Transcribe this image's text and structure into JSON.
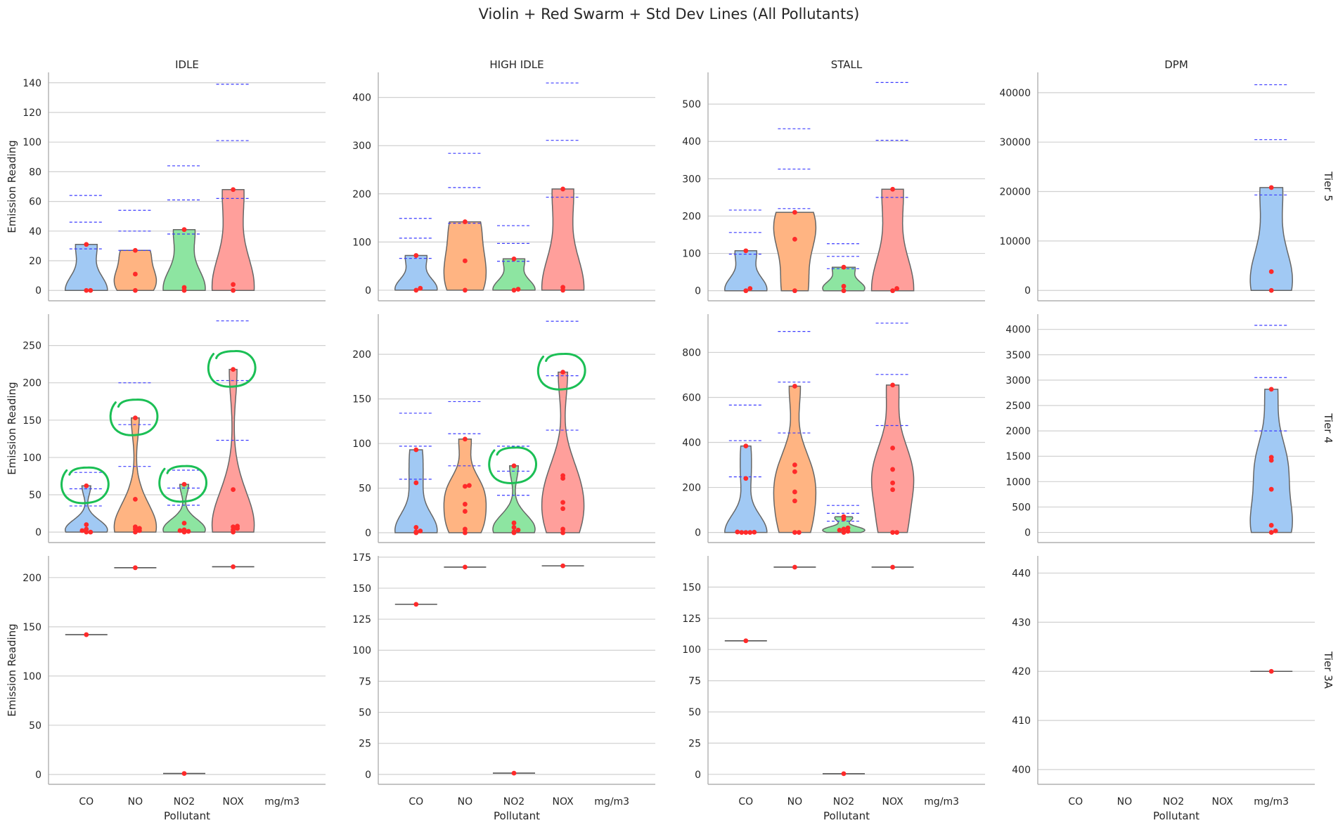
{
  "chart_data": {
    "type": "violin",
    "title": "Violin + Red Swarm + Std Dev Lines (All Pollutants)",
    "xlabel": "Pollutant",
    "ylabel": "Emission Reading",
    "categories": [
      "CO",
      "NO",
      "NO2",
      "NOX",
      "mg/m3"
    ],
    "columns": [
      "IDLE",
      "HIGH IDLE",
      "STALL",
      "DPM"
    ],
    "rows": [
      "Tier 5",
      "Tier 4",
      "Tier 3A"
    ],
    "colors": {
      "CO": "#a1c9f4",
      "NO": "#ffb482",
      "NO2": "#8de5a1",
      "NOX": "#ff9f9b",
      "mg/m3": "#a1c9f4",
      "points": "#ff2a2a",
      "std_lines": "#3b3bff",
      "annotation": "#1bbf55",
      "grid": "#d0d0d0"
    },
    "grid": true,
    "panels": [
      {
        "row": "Tier 5",
        "col": "IDLE",
        "ylim": [
          -7,
          147
        ],
        "yticks": [
          0,
          20,
          40,
          60,
          80,
          100,
          120,
          140
        ],
        "groups": [
          {
            "cat": "CO",
            "points": [
              0,
              0,
              31
            ],
            "std": [
              28,
              46,
              64
            ]
          },
          {
            "cat": "NO",
            "points": [
              0,
              11,
              27
            ],
            "std": [
              27,
              40,
              54
            ]
          },
          {
            "cat": "NO2",
            "points": [
              0,
              2,
              41
            ],
            "std": [
              38,
              61,
              84
            ]
          },
          {
            "cat": "NOX",
            "points": [
              0,
              4,
              68
            ],
            "std": [
              62,
              101,
              139
            ]
          }
        ]
      },
      {
        "row": "Tier 5",
        "col": "HIGH IDLE",
        "ylim": [
          -22,
          452
        ],
        "yticks": [
          0,
          100,
          200,
          300,
          400
        ],
        "groups": [
          {
            "cat": "CO",
            "points": [
              0,
              4,
              72
            ],
            "std": [
              66,
              108,
              149
            ]
          },
          {
            "cat": "NO",
            "points": [
              0,
              61,
              142
            ],
            "std": [
              139,
              213,
              284
            ]
          },
          {
            "cat": "NO2",
            "points": [
              0,
              2,
              65
            ],
            "std": [
              60,
              97,
              134
            ]
          },
          {
            "cat": "NOX",
            "points": [
              0,
              6,
              210
            ],
            "std": [
              193,
              311,
              430
            ]
          }
        ]
      },
      {
        "row": "Tier 5",
        "col": "STALL",
        "ylim": [
          -27,
          585
        ],
        "yticks": [
          0,
          100,
          200,
          300,
          400,
          500
        ],
        "groups": [
          {
            "cat": "CO",
            "points": [
              0,
              6,
              107
            ],
            "std": [
              98,
              156,
              216
            ]
          },
          {
            "cat": "NO",
            "points": [
              0,
              138,
              210
            ],
            "std": [
              220,
              326,
              434
            ]
          },
          {
            "cat": "NO2",
            "points": [
              0,
              12,
              63
            ],
            "std": [
              59,
              92,
              126
            ]
          },
          {
            "cat": "NOX",
            "points": [
              0,
              6,
              272
            ],
            "std": [
              250,
              403,
              558
            ]
          }
        ]
      },
      {
        "row": "Tier 5",
        "col": "DPM",
        "ylim": [
          -2100,
          44100
        ],
        "yticks": [
          0,
          10000,
          20000,
          30000,
          40000
        ],
        "groups": [
          {
            "cat": "mg/m3",
            "points": [
              0,
              3800,
              20800
            ],
            "std": [
              19300,
              30500,
              41600
            ]
          }
        ]
      },
      {
        "row": "Tier 4",
        "col": "IDLE",
        "ylim": [
          -14,
          292
        ],
        "yticks": [
          0,
          50,
          100,
          150,
          200,
          250
        ],
        "groups": [
          {
            "cat": "CO",
            "points": [
              0,
              0,
              2,
              4,
              10,
              62
            ],
            "std": [
              35,
              58,
              80
            ]
          },
          {
            "cat": "NO",
            "points": [
              0,
              2,
              4,
              5,
              7,
              44,
              153
            ],
            "std": [
              88,
              144,
              200
            ]
          },
          {
            "cat": "NO2",
            "points": [
              0,
              1,
              2,
              3,
              12,
              64
            ],
            "std": [
              36,
              59,
              83
            ]
          },
          {
            "cat": "NOX",
            "points": [
              0,
              3,
              5,
              7,
              8,
              57,
              218
            ],
            "std": [
              123,
              203,
              283
            ]
          }
        ]
      },
      {
        "row": "Tier 4",
        "col": "HIGH IDLE",
        "ylim": [
          -11,
          245
        ],
        "yticks": [
          0,
          50,
          100,
          150,
          200
        ],
        "groups": [
          {
            "cat": "CO",
            "points": [
              0,
              1,
              2,
              6,
              56,
              93
            ],
            "std": [
              60,
              97,
              134
            ]
          },
          {
            "cat": "NO",
            "points": [
              0,
              4,
              24,
              32,
              52,
              53,
              105
            ],
            "std": [
              75,
              111,
              147
            ]
          },
          {
            "cat": "NO2",
            "points": [
              0,
              1,
              3,
              6,
              11,
              75
            ],
            "std": [
              42,
              69,
              97
            ]
          },
          {
            "cat": "NOX",
            "points": [
              0,
              4,
              27,
              34,
              61,
              64,
              180
            ],
            "std": [
              115,
              176,
              237
            ]
          }
        ]
      },
      {
        "row": "Tier 4",
        "col": "STALL",
        "ylim": [
          -45,
          970
        ],
        "yticks": [
          0,
          200,
          400,
          600,
          800
        ],
        "groups": [
          {
            "cat": "CO",
            "points": [
              0,
              0,
              0,
              1,
              2,
              240,
              384
            ],
            "std": [
              247,
              408,
              566
            ]
          },
          {
            "cat": "NO",
            "points": [
              0,
              0,
              140,
              180,
              270,
              300,
              650
            ],
            "std": [
              442,
              668,
              893
            ]
          },
          {
            "cat": "NO2",
            "points": [
              0,
              5,
              10,
              15,
              20,
              60,
              70
            ],
            "std": [
              50,
              85,
              120
            ]
          },
          {
            "cat": "NOX",
            "points": [
              0,
              0,
              190,
              220,
              280,
              375,
              655
            ],
            "std": [
              475,
              702,
              930
            ]
          }
        ]
      },
      {
        "row": "Tier 4",
        "col": "DPM",
        "ylim": [
          -200,
          4300
        ],
        "yticks": [
          0,
          500,
          1000,
          1500,
          2000,
          2500,
          3000,
          3500,
          4000
        ],
        "groups": [
          {
            "cat": "mg/m3",
            "points": [
              0,
              30,
              140,
              850,
              1420,
              1480,
              2820
            ],
            "std": [
              2000,
              3050,
              4080
            ]
          }
        ]
      },
      {
        "row": "Tier 3A",
        "col": "IDLE",
        "ylim": [
          -10,
          222
        ],
        "yticks": [
          0,
          50,
          100,
          150,
          200
        ],
        "groups": [
          {
            "cat": "CO",
            "points": [
              142
            ],
            "std": []
          },
          {
            "cat": "NO",
            "points": [
              210
            ],
            "std": []
          },
          {
            "cat": "NO2",
            "points": [
              1
            ],
            "std": []
          },
          {
            "cat": "NOX",
            "points": [
              211
            ],
            "std": []
          }
        ]
      },
      {
        "row": "Tier 3A",
        "col": "HIGH IDLE",
        "ylim": [
          -8,
          176
        ],
        "yticks": [
          0,
          25,
          50,
          75,
          100,
          125,
          150,
          175
        ],
        "groups": [
          {
            "cat": "CO",
            "points": [
              137
            ],
            "std": []
          },
          {
            "cat": "NO",
            "points": [
              167
            ],
            "std": []
          },
          {
            "cat": "NO2",
            "points": [
              1
            ],
            "std": []
          },
          {
            "cat": "NOX",
            "points": [
              168
            ],
            "std": []
          }
        ]
      },
      {
        "row": "Tier 3A",
        "col": "STALL",
        "ylim": [
          -8,
          175
        ],
        "yticks": [
          0,
          25,
          50,
          75,
          100,
          125,
          150
        ],
        "groups": [
          {
            "cat": "CO",
            "points": [
              107
            ],
            "std": []
          },
          {
            "cat": "NO",
            "points": [
              166
            ],
            "std": []
          },
          {
            "cat": "NO2",
            "points": [
              0.5
            ],
            "std": []
          },
          {
            "cat": "NOX",
            "points": [
              166
            ],
            "std": []
          }
        ]
      },
      {
        "row": "Tier 3A",
        "col": "DPM",
        "ylim": [
          397,
          443.5
        ],
        "yticks": [
          400,
          410,
          420,
          430,
          440
        ],
        "groups": [
          {
            "cat": "mg/m3",
            "points": [
              420
            ],
            "std": []
          }
        ]
      }
    ],
    "annotations": {
      "type": "hand-drawn circles",
      "panel": "Tier 4 row",
      "targets": [
        "IDLE CO max",
        "IDLE NO max",
        "IDLE NO2 max",
        "IDLE NOX max",
        "HIGH IDLE NO2 max",
        "HIGH IDLE NOX max"
      ]
    }
  }
}
